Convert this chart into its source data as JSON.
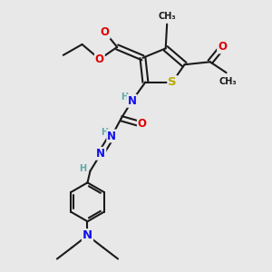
{
  "bg_color": "#e8e8e8",
  "bond_color": "#1a1a1a",
  "bond_width": 1.5,
  "colors": {
    "C": "#1a1a1a",
    "H": "#5fa8a8",
    "N": "#1010ee",
    "O": "#dd0000",
    "S": "#bbaa00"
  },
  "fig_size": [
    3.0,
    3.0
  ],
  "dpi": 100
}
